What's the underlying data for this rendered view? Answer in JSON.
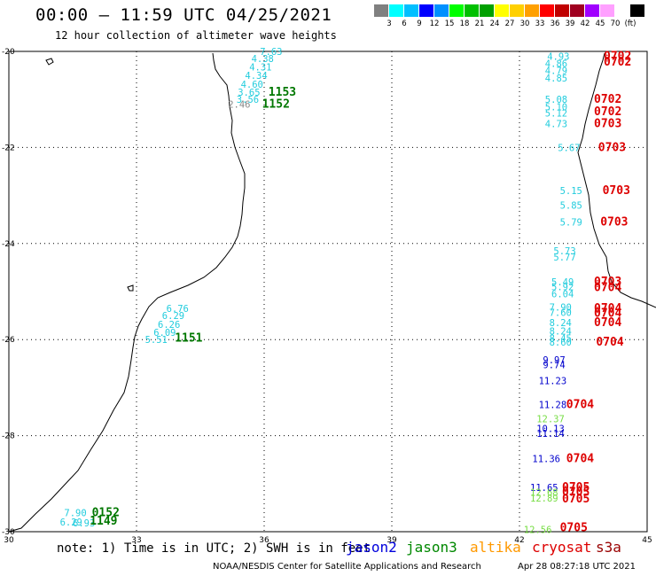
{
  "header": {
    "title": "00:00 – 11:59 UTC 04/25/2021",
    "subtitle": "12 hour collection of altimeter wave heights"
  },
  "legend": {
    "unit": "(ft)",
    "colors": [
      "#808080",
      "#00ffff",
      "#00bfff",
      "#0000ff",
      "#0090ff",
      "#00ff00",
      "#00c000",
      "#00a000",
      "#ffff00",
      "#ffd000",
      "#ffa000",
      "#ff0000",
      "#c00000",
      "#a00020",
      "#a000ff",
      "#ffa0ff",
      "#ffffff",
      "#000000"
    ],
    "labels": [
      "3",
      "6",
      "9",
      "12",
      "15",
      "18",
      "21",
      "24",
      "27",
      "30",
      "33",
      "36",
      "39",
      "42",
      "45",
      "70"
    ]
  },
  "axes": {
    "y_ticks": [
      "-20",
      "-22",
      "-24",
      "-26",
      "-28",
      "-30"
    ],
    "x_ticks": [
      "30",
      "33",
      "36",
      "39",
      "42",
      "45"
    ]
  },
  "observations": [
    {
      "t": "7.63",
      "c": "#22ccdd",
      "lon": 35.9,
      "lat": -20.0
    },
    {
      "t": "4.38",
      "c": "#22ccdd",
      "lon": 35.7,
      "lat": -20.15
    },
    {
      "t": "4.31",
      "c": "#22ccdd",
      "lon": 35.65,
      "lat": -20.32
    },
    {
      "t": "4.34",
      "c": "#22ccdd",
      "lon": 35.55,
      "lat": -20.5
    },
    {
      "t": "4.60",
      "c": "#22ccdd",
      "lon": 35.45,
      "lat": -20.68
    },
    {
      "t": "3.65",
      "c": "#22ccdd",
      "lon": 35.38,
      "lat": -20.85
    },
    {
      "t": "3.56",
      "c": "#22ccdd",
      "lon": 35.35,
      "lat": -21.0
    },
    {
      "t": "2.46",
      "c": "#888888",
      "lon": 35.15,
      "lat": -21.1
    },
    {
      "t": "1153",
      "c": "#007700",
      "lon": 36.1,
      "lat": -20.85,
      "big": true
    },
    {
      "t": "1152",
      "c": "#007700",
      "lon": 35.95,
      "lat": -21.1,
      "big": true
    },
    {
      "t": "6.76",
      "c": "#22ccdd",
      "lon": 33.7,
      "lat": -25.35
    },
    {
      "t": "6.29",
      "c": "#22ccdd",
      "lon": 33.6,
      "lat": -25.5
    },
    {
      "t": "6.26",
      "c": "#22ccdd",
      "lon": 33.5,
      "lat": -25.68
    },
    {
      "t": "6.09",
      "c": "#22ccdd",
      "lon": 33.4,
      "lat": -25.85
    },
    {
      "t": "5.51",
      "c": "#22ccdd",
      "lon": 33.2,
      "lat": -26.0
    },
    {
      "t": "1151",
      "c": "#007700",
      "lon": 33.9,
      "lat": -25.97,
      "big": true
    },
    {
      "t": "7.90",
      "c": "#22ccdd",
      "lon": 31.3,
      "lat": -29.6
    },
    {
      "t": "6.29",
      "c": "#22ccdd",
      "lon": 31.2,
      "lat": -29.8
    },
    {
      "t": "6.93",
      "c": "#22ccdd",
      "lon": 31.5,
      "lat": -29.82
    },
    {
      "t": "0152",
      "c": "#007700",
      "lon": 31.95,
      "lat": -29.6,
      "big": true
    },
    {
      "t": "1149",
      "c": "#007700",
      "lon": 31.9,
      "lat": -29.78,
      "big": true
    },
    {
      "t": "4.93",
      "c": "#22ccdd",
      "lon": 42.65,
      "lat": -20.1
    },
    {
      "t": "4.86",
      "c": "#22ccdd",
      "lon": 42.6,
      "lat": -20.25
    },
    {
      "t": "4.79",
      "c": "#22ccdd",
      "lon": 42.6,
      "lat": -20.4
    },
    {
      "t": "4.85",
      "c": "#22ccdd",
      "lon": 42.6,
      "lat": -20.55
    },
    {
      "t": "0702",
      "c": "#dd0000",
      "lon": 43.98,
      "lat": -20.1,
      "big": true
    },
    {
      "t": "0702",
      "c": "#dd0000",
      "lon": 43.98,
      "lat": -20.22,
      "big": true
    },
    {
      "t": "5.08",
      "c": "#22ccdd",
      "lon": 42.6,
      "lat": -21.0
    },
    {
      "t": "5.10",
      "c": "#22ccdd",
      "lon": 42.6,
      "lat": -21.15
    },
    {
      "t": "5.12",
      "c": "#22ccdd",
      "lon": 42.6,
      "lat": -21.28
    },
    {
      "t": "0702",
      "c": "#dd0000",
      "lon": 43.75,
      "lat": -21.0,
      "big": true
    },
    {
      "t": "0702",
      "c": "#dd0000",
      "lon": 43.75,
      "lat": -21.25,
      "big": true
    },
    {
      "t": "4.73",
      "c": "#22ccdd",
      "lon": 42.6,
      "lat": -21.5
    },
    {
      "t": "0703",
      "c": "#dd0000",
      "lon": 43.75,
      "lat": -21.5,
      "big": true
    },
    {
      "t": "5.67",
      "c": "#22ccdd",
      "lon": 42.9,
      "lat": -22.0
    },
    {
      "t": "0703",
      "c": "#dd0000",
      "lon": 43.85,
      "lat": -22.0,
      "big": true
    },
    {
      "t": "5.15",
      "c": "#22ccdd",
      "lon": 42.95,
      "lat": -22.9
    },
    {
      "t": "0703",
      "c": "#dd0000",
      "lon": 43.95,
      "lat": -22.9,
      "big": true
    },
    {
      "t": "5.85",
      "c": "#22ccdd",
      "lon": 42.95,
      "lat": -23.2
    },
    {
      "t": "5.79",
      "c": "#22ccdd",
      "lon": 42.95,
      "lat": -23.55
    },
    {
      "t": "0703",
      "c": "#dd0000",
      "lon": 43.9,
      "lat": -23.55,
      "big": true
    },
    {
      "t": "5.73",
      "c": "#22ccdd",
      "lon": 42.8,
      "lat": -24.15
    },
    {
      "t": "5.77",
      "c": "#22ccdd",
      "lon": 42.8,
      "lat": -24.28
    },
    {
      "t": "5.49",
      "c": "#22ccdd",
      "lon": 42.75,
      "lat": -24.8
    },
    {
      "t": "5.92",
      "c": "#22ccdd",
      "lon": 42.75,
      "lat": -24.9
    },
    {
      "t": "6.04",
      "c": "#22ccdd",
      "lon": 42.75,
      "lat": -25.05
    },
    {
      "t": "0703",
      "c": "#dd0000",
      "lon": 43.75,
      "lat": -24.8,
      "big": true
    },
    {
      "t": "0704",
      "c": "#dd0000",
      "lon": 43.75,
      "lat": -24.92,
      "big": true
    },
    {
      "t": "7.90",
      "c": "#22ccdd",
      "lon": 42.7,
      "lat": -25.32
    },
    {
      "t": "7.60",
      "c": "#22ccdd",
      "lon": 42.7,
      "lat": -25.43
    },
    {
      "t": "0704",
      "c": "#dd0000",
      "lon": 43.75,
      "lat": -25.35,
      "big": true
    },
    {
      "t": "0704",
      "c": "#dd0000",
      "lon": 43.75,
      "lat": -25.45,
      "big": true
    },
    {
      "t": "8.24",
      "c": "#22ccdd",
      "lon": 42.7,
      "lat": -25.65
    },
    {
      "t": "8.24",
      "c": "#22ccdd",
      "lon": 42.7,
      "lat": -25.82
    },
    {
      "t": "0704",
      "c": "#dd0000",
      "lon": 43.75,
      "lat": -25.65,
      "big": true
    },
    {
      "t": "8.45",
      "c": "#22ccdd",
      "lon": 42.7,
      "lat": -25.97
    },
    {
      "t": "8.60",
      "c": "#22ccdd",
      "lon": 42.7,
      "lat": -26.05
    },
    {
      "t": "0704",
      "c": "#dd0000",
      "lon": 43.8,
      "lat": -26.05,
      "big": true
    },
    {
      "t": "9.97",
      "c": "#0000cc",
      "lon": 42.55,
      "lat": -26.42
    },
    {
      "t": "9.74",
      "c": "#0000cc",
      "lon": 42.55,
      "lat": -26.52
    },
    {
      "t": "11.23",
      "c": "#0000cc",
      "lon": 42.45,
      "lat": -26.85
    },
    {
      "t": "11.28",
      "c": "#0000cc",
      "lon": 42.45,
      "lat": -27.35
    },
    {
      "t": "0704",
      "c": "#dd0000",
      "lon": 43.1,
      "lat": -27.35,
      "big": true
    },
    {
      "t": "12.37",
      "c": "#77dd44",
      "lon": 42.4,
      "lat": -27.65
    },
    {
      "t": "10.13",
      "c": "#0000cc",
      "lon": 42.4,
      "lat": -27.85
    },
    {
      "t": "11.14",
      "c": "#0000cc",
      "lon": 42.4,
      "lat": -27.95
    },
    {
      "t": "11.36",
      "c": "#0000cc",
      "lon": 42.3,
      "lat": -28.48
    },
    {
      "t": "0704",
      "c": "#dd0000",
      "lon": 43.1,
      "lat": -28.48,
      "big": true
    },
    {
      "t": "11.65",
      "c": "#0000cc",
      "lon": 42.25,
      "lat": -29.08
    },
    {
      "t": "12.68",
      "c": "#77dd44",
      "lon": 42.25,
      "lat": -29.18
    },
    {
      "t": "12.89",
      "c": "#77dd44",
      "lon": 42.25,
      "lat": -29.3
    },
    {
      "t": "0705",
      "c": "#dd0000",
      "lon": 43.0,
      "lat": -29.08,
      "big": true
    },
    {
      "t": "0705",
      "c": "#dd0000",
      "lon": 43.0,
      "lat": -29.18,
      "big": true
    },
    {
      "t": "0705",
      "c": "#dd0000",
      "lon": 43.0,
      "lat": -29.32,
      "big": true
    },
    {
      "t": "12.56",
      "c": "#77dd44",
      "lon": 42.1,
      "lat": -29.95
    },
    {
      "t": "0705",
      "c": "#dd0000",
      "lon": 42.95,
      "lat": -29.92,
      "big": true
    }
  ],
  "footer": {
    "note": "note: 1) Time is in UTC; 2) SWH is in feet",
    "satellites": [
      {
        "name": "jason2",
        "color": "#0000dd"
      },
      {
        "name": "jason3",
        "color": "#008800"
      },
      {
        "name": "altika",
        "color": "#ff9900"
      },
      {
        "name": "cryosat",
        "color": "#dd0000"
      },
      {
        "name": "s3a",
        "color": "#990000"
      }
    ],
    "credit": "NOAA/NESDIS Center for Satellite Applications and Research",
    "timestamp": "Apr 28 08:27:18 UTC 2021"
  }
}
